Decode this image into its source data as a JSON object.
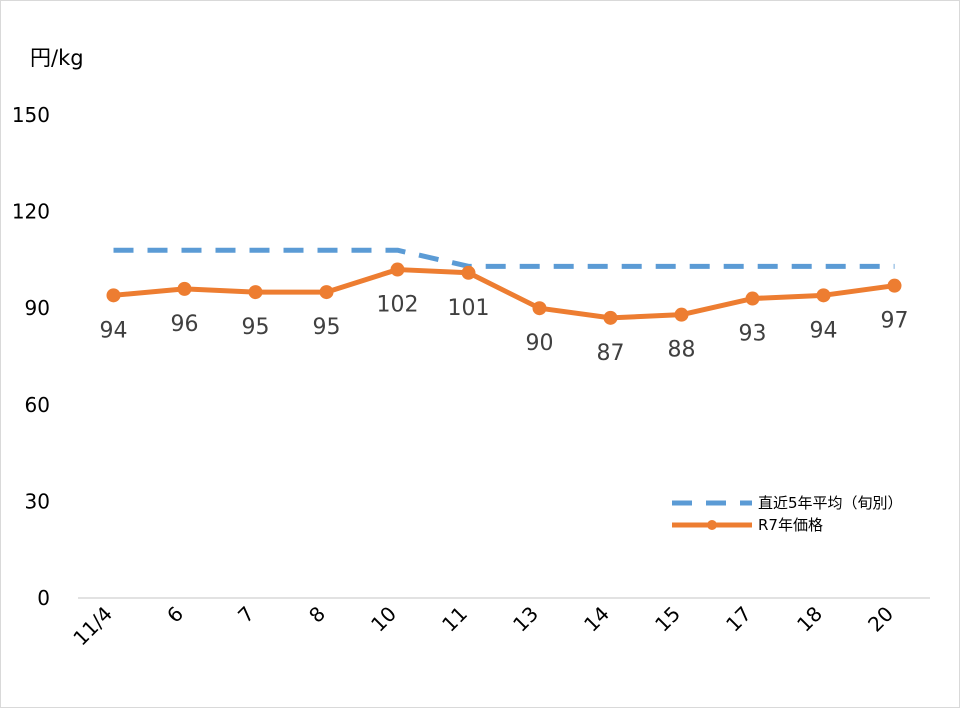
{
  "chart_data": {
    "type": "line",
    "title": "",
    "ylabel": "円/kg",
    "xlabel": "",
    "ylim": [
      0,
      150
    ],
    "yticks": [
      "0",
      "30",
      "60",
      "90",
      "120",
      "150"
    ],
    "categories": [
      "11/4",
      "6",
      "7",
      "8",
      "10",
      "11",
      "13",
      "14",
      "15",
      "17",
      "18",
      "20"
    ],
    "series": [
      {
        "name": "直近5年平均（旬別）",
        "color": "#5b9bd5",
        "style": "dashed",
        "values": [
          108,
          108,
          108,
          108,
          108,
          103,
          103,
          103,
          103,
          103,
          103,
          103
        ]
      },
      {
        "name": "R7年価格",
        "color": "#ed7d31",
        "style": "solid-markers",
        "values": [
          94,
          96,
          95,
          95,
          102,
          101,
          90,
          87,
          88,
          93,
          94,
          97
        ],
        "data_labels": [
          "94",
          "96",
          "95",
          "95",
          "102",
          "101",
          "90",
          "87",
          "88",
          "93",
          "94",
          "97"
        ]
      }
    ],
    "grid": false,
    "legend_position": "right"
  }
}
